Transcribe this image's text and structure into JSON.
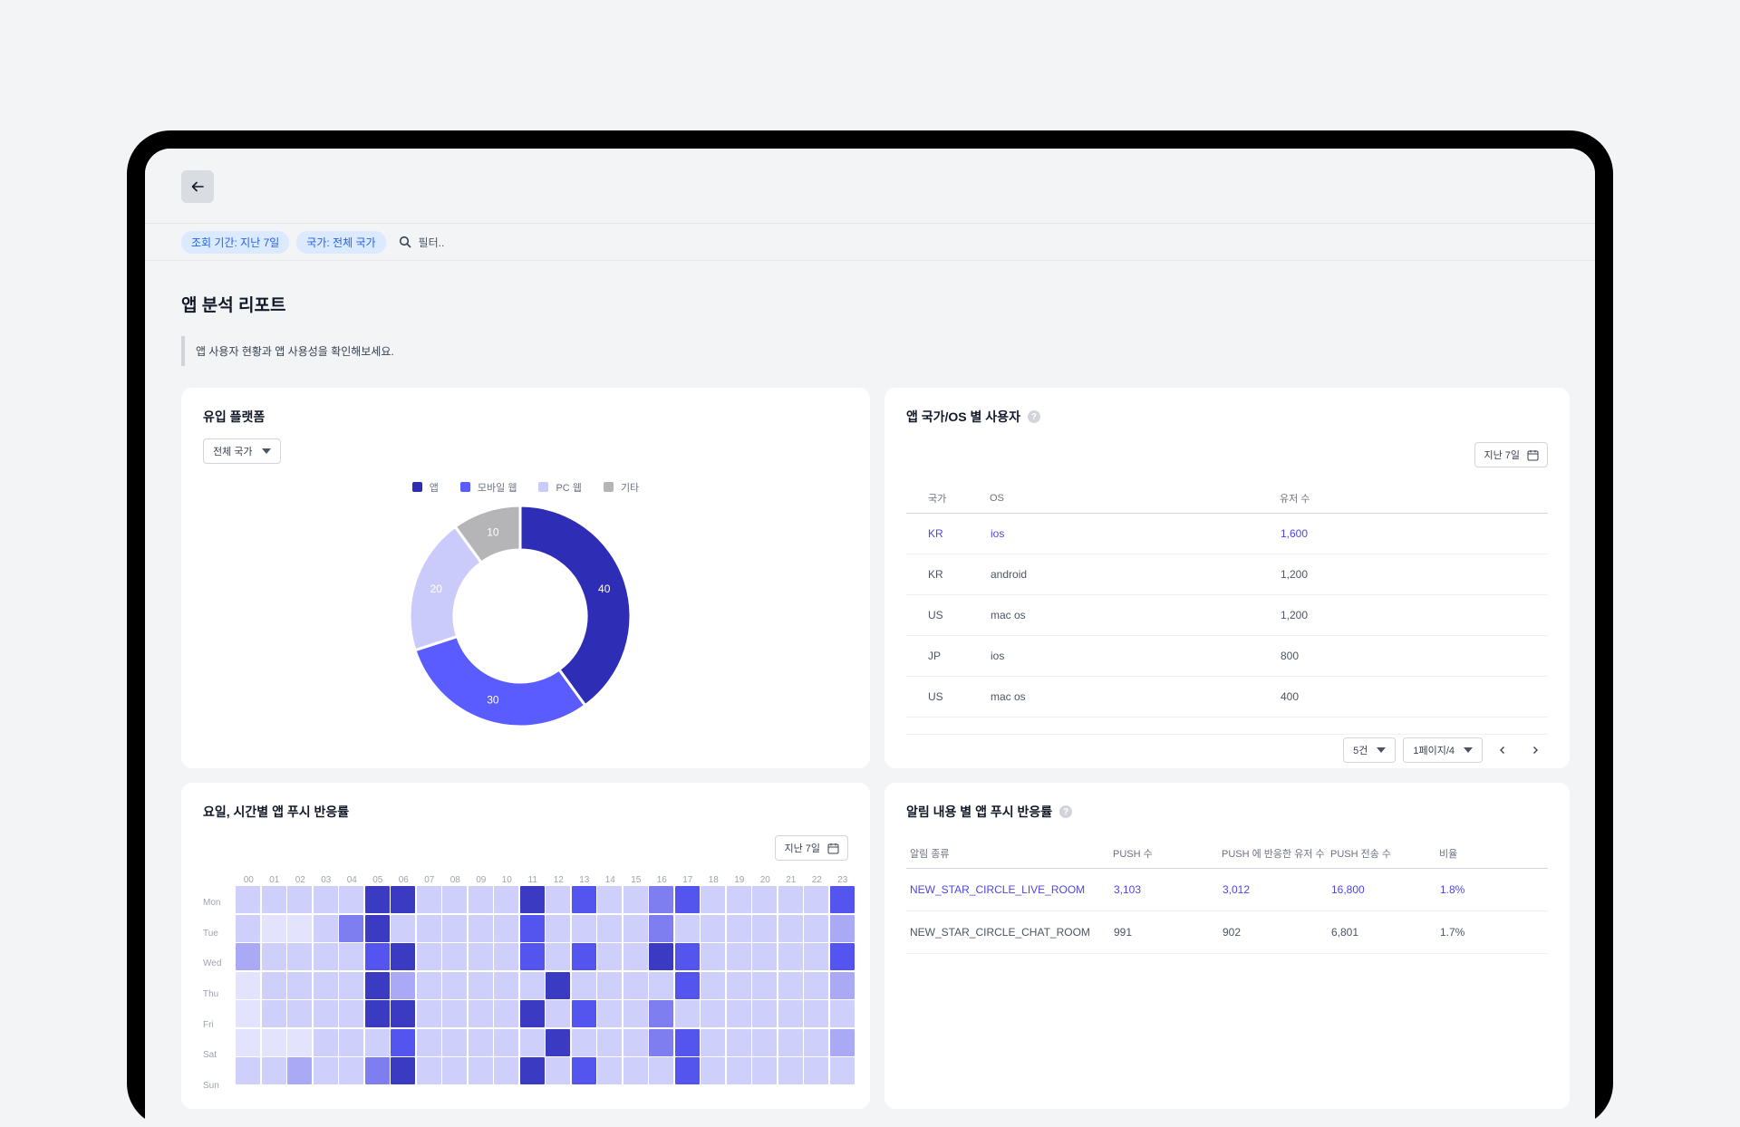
{
  "filters": {
    "chips": [
      "조회 기간: 지난 7일",
      "국가: 전체 국가"
    ],
    "search_placeholder": "필터.."
  },
  "page": {
    "title": "앱 분석 리포트",
    "description": "앱 사용자 현황과 앱 사용성을 확인해보세요."
  },
  "platform_card": {
    "title": "유입 플랫폼",
    "country_select": "전체 국가",
    "colors": [
      "#2d2db5",
      "#5a5cff",
      "#cbcbfb",
      "#b5b5b8"
    ],
    "chart_data": {
      "type": "pie",
      "categories": [
        "앱",
        "모바일 웹",
        "PC 웹",
        "기타"
      ],
      "values": [
        40,
        30,
        20,
        10
      ]
    }
  },
  "os_card": {
    "title": "앱 국가/OS 별 사용자",
    "date_button": "지난 7일",
    "columns": [
      "국가",
      "OS",
      "유저 수"
    ],
    "rows": [
      [
        "KR",
        "ios",
        "1,600"
      ],
      [
        "KR",
        "android",
        "1,200"
      ],
      [
        "US",
        "mac os",
        "1,200"
      ],
      [
        "JP",
        "ios",
        "800"
      ],
      [
        "US",
        "mac os",
        "400"
      ]
    ],
    "page_size": "5건",
    "page_info": "1페이지/4"
  },
  "heatmap_card": {
    "title": "요일, 시간별 앱 푸시 반응률",
    "date_button": "지난 7일",
    "palette": [
      "#e3e3fd",
      "#cfcffc",
      "#a9a9f6",
      "#7e7ef1",
      "#5454ef",
      "#3a3ac2"
    ],
    "chart_data": {
      "type": "heatmap",
      "x": [
        "00",
        "01",
        "02",
        "03",
        "04",
        "05",
        "06",
        "07",
        "08",
        "09",
        "10",
        "11",
        "12",
        "13",
        "14",
        "15",
        "16",
        "17",
        "18",
        "19",
        "20",
        "21",
        "22",
        "23"
      ],
      "y": [
        "Mon",
        "Tue",
        "Wed",
        "Thu",
        "Fri",
        "Sat",
        "Sun"
      ],
      "levels": [
        [
          1,
          1,
          1,
          1,
          1,
          5,
          5,
          1,
          1,
          1,
          1,
          5,
          1,
          4,
          1,
          1,
          3,
          4,
          1,
          1,
          1,
          1,
          1,
          4
        ],
        [
          1,
          0,
          0,
          1,
          3,
          5,
          1,
          1,
          1,
          1,
          1,
          4,
          1,
          1,
          1,
          1,
          3,
          1,
          1,
          1,
          1,
          1,
          1,
          2
        ],
        [
          2,
          1,
          1,
          1,
          1,
          4,
          5,
          1,
          1,
          1,
          1,
          4,
          1,
          4,
          1,
          1,
          5,
          4,
          1,
          1,
          1,
          1,
          1,
          4
        ],
        [
          0,
          1,
          1,
          1,
          1,
          5,
          2,
          1,
          1,
          1,
          1,
          1,
          5,
          1,
          1,
          1,
          1,
          4,
          1,
          1,
          1,
          1,
          1,
          2
        ],
        [
          0,
          1,
          1,
          1,
          1,
          5,
          5,
          1,
          1,
          1,
          1,
          5,
          1,
          4,
          1,
          1,
          3,
          1,
          1,
          1,
          1,
          1,
          1,
          1
        ],
        [
          0,
          0,
          0,
          1,
          1,
          1,
          4,
          1,
          1,
          1,
          1,
          1,
          5,
          1,
          1,
          1,
          3,
          4,
          1,
          1,
          1,
          1,
          1,
          2
        ],
        [
          1,
          1,
          2,
          1,
          1,
          3,
          5,
          1,
          1,
          1,
          1,
          5,
          1,
          4,
          1,
          1,
          1,
          4,
          1,
          1,
          1,
          1,
          1,
          1
        ]
      ]
    }
  },
  "push_card": {
    "title": "알림 내용 별 앱 푸시 반응률",
    "columns": [
      "알림 종류",
      "PUSH 수",
      "PUSH 에 반응한 유저 수",
      "PUSH 전송 수",
      "비율"
    ],
    "rows": [
      [
        "NEW_STAR_CIRCLE_LIVE_ROOM",
        "3,103",
        "3,012",
        "16,800",
        "1.8%"
      ],
      [
        "NEW_STAR_CIRCLE_CHAT_ROOM",
        "991",
        "902",
        "6,801",
        "1.7%"
      ]
    ]
  }
}
